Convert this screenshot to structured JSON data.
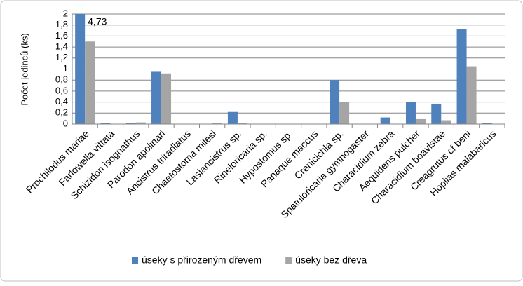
{
  "chart_data": {
    "type": "bar",
    "y_label": "Počet jedinců (ks)",
    "categories": [
      "Prochilodus mariae",
      "Farlowella vittata",
      "Schizidon isognathus",
      "Parodon apolinari",
      "Ancistrus triradiatus",
      "Chaetostoma milesi",
      "Lasiancistrus sp.",
      "Rineloricaria sp.",
      "Hypostomus sp.",
      "Panaque maccus",
      "Crenicichla sp.",
      "Spatuloricaria gymnogaster",
      "Characidium zebra",
      "Aequidens pulcher",
      "Characidium boavistae",
      "Creagrutus cf beni",
      "Hoplias malabaricus"
    ],
    "series": [
      {
        "name": "úseky s přirozeným dřevem",
        "color": "#4f81bd",
        "values": [
          4.73,
          0.02,
          0.02,
          0.95,
          0,
          0,
          0.22,
          0,
          0,
          0,
          0.8,
          0,
          0.12,
          0.4,
          0.37,
          1.73,
          0.02
        ],
        "value_labels": [
          "4,73",
          null,
          null,
          null,
          null,
          null,
          null,
          null,
          null,
          null,
          null,
          null,
          null,
          null,
          null,
          null,
          null
        ]
      },
      {
        "name": "úseky bez dřeva",
        "color": "#a5a5a5",
        "values": [
          1.5,
          0,
          0.03,
          0.92,
          0,
          0.02,
          0.02,
          0,
          0,
          0,
          0.4,
          0,
          0,
          0.09,
          0.07,
          1.05,
          0
        ]
      }
    ],
    "ylim": [
      0,
      2
    ],
    "yticks": [
      0,
      {
        "value": 0.2,
        "label": "0,2"
      },
      {
        "value": 0.4,
        "label": "0,4"
      },
      {
        "value": 0.6,
        "label": "0,6"
      },
      {
        "value": 0.8,
        "label": "0,8"
      },
      1,
      {
        "value": 1.2,
        "label": "1,2"
      },
      {
        "value": 1.4,
        "label": "1,4"
      },
      {
        "value": 1.6,
        "label": "1,6"
      },
      {
        "value": 1.8,
        "label": "1,8"
      },
      2
    ],
    "grid": true,
    "legend": "bottom"
  }
}
